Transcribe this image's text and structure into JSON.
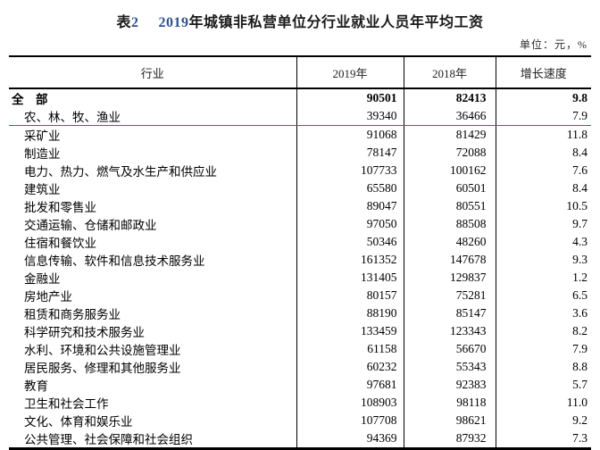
{
  "title": {
    "prefix": "表2",
    "main": "2019年城镇非私营单位分行业就业人员年平均工资"
  },
  "unit_note": "单位：元，%",
  "colors": {
    "title_digit": "#2e5191",
    "green_highlight_line": "#3f7e20",
    "table_border": "#000000",
    "background": "#ffffff"
  },
  "table": {
    "columns": [
      "行业",
      "2019年",
      "2018年",
      "增长速度"
    ],
    "rows": [
      {
        "industry": "全　部",
        "y2019": "90501",
        "y2018": "82413",
        "growth": "9.8",
        "bold": true
      },
      {
        "industry": "农、林、牧、渔业",
        "y2019": "39340",
        "y2018": "36466",
        "growth": "7.9",
        "green_underline": true
      },
      {
        "industry": "采矿业",
        "y2019": "91068",
        "y2018": "81429",
        "growth": "11.8"
      },
      {
        "industry": "制造业",
        "y2019": "78147",
        "y2018": "72088",
        "growth": "8.4"
      },
      {
        "industry": "电力、热力、燃气及水生产和供应业",
        "y2019": "107733",
        "y2018": "100162",
        "growth": "7.6"
      },
      {
        "industry": "建筑业",
        "y2019": "65580",
        "y2018": "60501",
        "growth": "8.4"
      },
      {
        "industry": "批发和零售业",
        "y2019": "89047",
        "y2018": "80551",
        "growth": "10.5"
      },
      {
        "industry": "交通运输、仓储和邮政业",
        "y2019": "97050",
        "y2018": "88508",
        "growth": "9.7"
      },
      {
        "industry": "住宿和餐饮业",
        "y2019": "50346",
        "y2018": "48260",
        "growth": "4.3"
      },
      {
        "industry": "信息传输、软件和信息技术服务业",
        "y2019": "161352",
        "y2018": "147678",
        "growth": "9.3"
      },
      {
        "industry": "金融业",
        "y2019": "131405",
        "y2018": "129837",
        "growth": "1.2"
      },
      {
        "industry": "房地产业",
        "y2019": "80157",
        "y2018": "75281",
        "growth": "6.5"
      },
      {
        "industry": "租赁和商务服务业",
        "y2019": "88190",
        "y2018": "85147",
        "growth": "3.6"
      },
      {
        "industry": "科学研究和技术服务业",
        "y2019": "133459",
        "y2018": "123343",
        "growth": "8.2"
      },
      {
        "industry": "水利、环境和公共设施管理业",
        "y2019": "61158",
        "y2018": "56670",
        "growth": "7.9"
      },
      {
        "industry": "居民服务、修理和其他服务业",
        "y2019": "60232",
        "y2018": "55343",
        "growth": "8.8"
      },
      {
        "industry": "教育",
        "y2019": "97681",
        "y2018": "92383",
        "growth": "5.7"
      },
      {
        "industry": "卫生和社会工作",
        "y2019": "108903",
        "y2018": "98118",
        "growth": "11.0"
      },
      {
        "industry": "文化、体育和娱乐业",
        "y2019": "107708",
        "y2018": "98621",
        "growth": "9.2"
      },
      {
        "industry": "公共管理、社会保障和社会组织",
        "y2019": "94369",
        "y2018": "87932",
        "growth": "7.3"
      }
    ]
  }
}
